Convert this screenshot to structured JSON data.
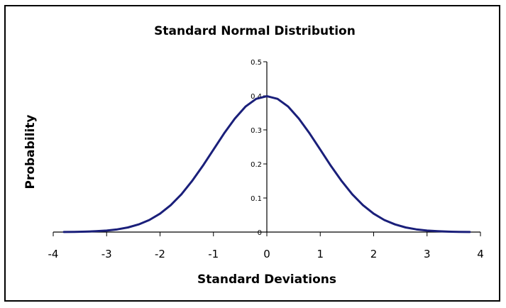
{
  "chart_data": {
    "type": "line",
    "title": "Standard Normal Distribution",
    "xlabel": "Standard Deviations",
    "ylabel": "Probability",
    "xlim": [
      -4,
      4
    ],
    "ylim": [
      0,
      0.5
    ],
    "xticks": [
      "-4",
      "-3",
      "-2",
      "-1",
      "0",
      "1",
      "2",
      "3",
      "4"
    ],
    "yticks": [
      "0",
      "0.1",
      "0.2",
      "0.3",
      "0.4",
      "0.5"
    ],
    "grid": false,
    "legend": "none",
    "line_color": "#1a1f7a",
    "series": [
      {
        "x": [
          -3.8,
          -3.6,
          -3.4,
          -3.2,
          -3.0,
          -2.8,
          -2.6,
          -2.4,
          -2.2,
          -2.0,
          -1.8,
          -1.6,
          -1.4,
          -1.2,
          -1.0,
          -0.8,
          -0.6,
          -0.4,
          -0.2,
          0.0,
          0.2,
          0.4,
          0.6,
          0.8,
          1.0,
          1.2,
          1.4,
          1.6,
          1.8,
          2.0,
          2.2,
          2.4,
          2.6,
          2.8,
          3.0,
          3.2,
          3.4,
          3.6,
          3.8
        ],
        "y": [
          0.0003,
          0.0006,
          0.0012,
          0.0024,
          0.0044,
          0.0079,
          0.0136,
          0.0224,
          0.0355,
          0.054,
          0.079,
          0.1109,
          0.1497,
          0.1942,
          0.242,
          0.2897,
          0.3332,
          0.3683,
          0.391,
          0.3989,
          0.391,
          0.3683,
          0.3332,
          0.2897,
          0.242,
          0.1942,
          0.1497,
          0.1109,
          0.079,
          0.054,
          0.0355,
          0.0224,
          0.0136,
          0.0079,
          0.0044,
          0.0024,
          0.0012,
          0.0006,
          0.0003
        ]
      }
    ]
  }
}
